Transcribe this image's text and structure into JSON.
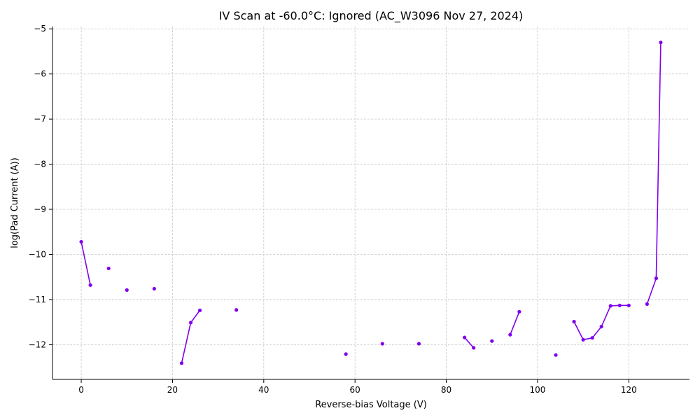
{
  "chart_data": {
    "type": "scatter",
    "title": "IV Scan at -60.0°C: Ignored (AC_W3096 Nov 27, 2024)",
    "xlabel": "Reverse-bias Voltage (V)",
    "ylabel": "log(Pad Current (A))",
    "xlim": [
      -6.3,
      133.3
    ],
    "ylim": [
      -12.77,
      -4.95
    ],
    "xticks": [
      0,
      20,
      40,
      60,
      80,
      100,
      120
    ],
    "xtick_labels": [
      "0",
      "20",
      "40",
      "60",
      "80",
      "100",
      "120"
    ],
    "yticks": [
      -12,
      -11,
      -10,
      -9,
      -8,
      -7,
      -6,
      -5
    ],
    "ytick_labels": [
      "−12",
      "−11",
      "−10",
      "−9",
      "−8",
      "−7",
      "−6",
      "−5"
    ],
    "grid": true,
    "color": "#8000ee",
    "series": [
      {
        "x": [
          0,
          2,
          6,
          10,
          16,
          22,
          24,
          26,
          34,
          58,
          66,
          74,
          84,
          86,
          90,
          94,
          96,
          104,
          108,
          110,
          112,
          114,
          116,
          118,
          120,
          124,
          126,
          127
        ],
        "y": [
          -9.72,
          -10.68,
          -10.31,
          -10.79,
          -10.76,
          -12.41,
          -11.51,
          -11.24,
          -11.23,
          -12.21,
          -11.98,
          -11.98,
          -11.84,
          -12.07,
          -11.92,
          -11.78,
          -11.27,
          -12.23,
          -11.49,
          -11.89,
          -11.85,
          -11.6,
          -11.14,
          -11.13,
          -11.13,
          -11.1,
          -10.53,
          -5.3
        ],
        "connected": [
          [
            0,
            1
          ],
          [
            5,
            6
          ],
          [
            6,
            7
          ],
          [
            12,
            13
          ],
          [
            15,
            16
          ],
          [
            18,
            19
          ],
          [
            19,
            20
          ],
          [
            20,
            21
          ],
          [
            21,
            22
          ],
          [
            22,
            23
          ],
          [
            23,
            24
          ],
          [
            25,
            26
          ],
          [
            26,
            27
          ]
        ]
      }
    ]
  }
}
